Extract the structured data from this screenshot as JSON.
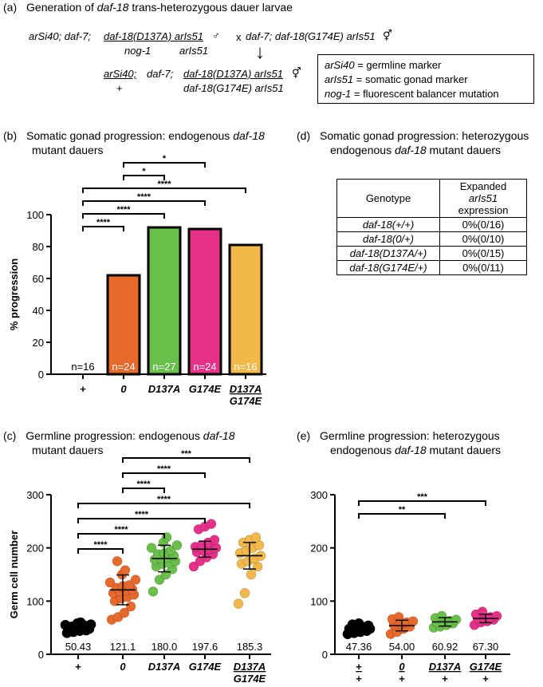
{
  "panel_a": {
    "label": "(a)",
    "title_pre": "Generation of ",
    "title_gene": "daf-18",
    "title_post": " trans-heterozygous dauer larvae",
    "cross": {
      "p1_prefix": "arSi40; daf-7;",
      "p1_top": "daf-18(D137A) arIs51",
      "p1_male": "♂",
      "p1_bottom_left": "nog-1",
      "p1_bottom_right": "arIs51",
      "x": "x",
      "p2": "daf-7; daf-18(G174E) arIs51",
      "p2_herm": "⚥",
      "arrow": "↓",
      "off_top_left": "arSi40;",
      "off_bottom_left": "+",
      "off_mid": "daf-7;",
      "off_top": "daf-18(D137A) arIs51",
      "off_herm": "⚥",
      "off_bottom": "daf-18(G174E) arIs51"
    },
    "key": [
      {
        "name": "arSi40",
        "desc": " = germline marker"
      },
      {
        "name": "arIs51",
        "desc": " = somatic gonad marker"
      },
      {
        "name": "nog-1",
        "desc": " = fluorescent balancer mutation"
      }
    ]
  },
  "panel_b": {
    "label": "(b)",
    "title_line1": "Somatic gonad progression: endogenous ",
    "title_gene": "daf-18",
    "title_line2": "mutant dauers",
    "chart_data": {
      "type": "bar",
      "categories": [
        "+",
        "0",
        "D137A",
        "G174E",
        "D137A/G174E"
      ],
      "values": [
        0,
        62,
        92,
        91,
        81
      ],
      "n_labels": [
        "n=16",
        "n=24",
        "n=27",
        "n=24",
        "n=16"
      ],
      "colors": [
        "#ffffff",
        "#e8692c",
        "#6abf4b",
        "#e6318a",
        "#f2b84a"
      ],
      "ylabel": "% progression",
      "ylim": [
        0,
        100
      ],
      "yticks": [
        0,
        20,
        40,
        60,
        80,
        100
      ],
      "significance": [
        {
          "from": 1,
          "to": 3,
          "label": "*"
        },
        {
          "from": 1,
          "to": 2,
          "label": "*"
        },
        {
          "from": 0,
          "to": 4,
          "label": "****"
        },
        {
          "from": 0,
          "to": 3,
          "label": "****"
        },
        {
          "from": 0,
          "to": 2,
          "label": "****"
        },
        {
          "from": 0,
          "to": 1,
          "label": "****"
        }
      ]
    }
  },
  "panel_d": {
    "label": "(d)",
    "title_line1": "Somatic gonad progression: heterozygous",
    "title_line2_pre": "endogenous ",
    "title_gene": "daf-18",
    "title_line2_post": " mutant dauers",
    "header_genotype": "Genotype",
    "header_expr_1": "Expanded",
    "header_expr_2": "arIs51",
    "header_expr_3": "expression",
    "rows": [
      {
        "genotype": "daf-18(+/+)",
        "value": "0%(0/16)"
      },
      {
        "genotype": "daf-18(0/+)",
        "value": "0%(0/10)"
      },
      {
        "genotype": "daf-18(D137A/+)",
        "value": "0%(0/15)"
      },
      {
        "genotype": "daf-18(G174E/+)",
        "value": "0%(0/11)"
      }
    ]
  },
  "panel_c": {
    "label": "(c)",
    "title_line1": "Germline progression: endogenous ",
    "title_gene": "daf-18",
    "title_line2": "mutant dauers",
    "chart_data": {
      "type": "scatter",
      "categories": [
        "+",
        "0",
        "D137A",
        "G174E",
        "D137A/G174E"
      ],
      "means": [
        50.43,
        121.1,
        180.0,
        197.6,
        185.3
      ],
      "mean_labels": [
        "50.43",
        "121.1",
        "180.0",
        "197.6",
        "185.3"
      ],
      "sd": [
        6,
        28,
        25,
        15,
        25
      ],
      "colors": [
        "#000000",
        "#e8692c",
        "#6abf4b",
        "#e6318a",
        "#f2b84a"
      ],
      "points": [
        [
          40,
          42,
          44,
          45,
          46,
          47,
          48,
          48,
          49,
          50,
          50,
          51,
          52,
          53,
          54,
          55,
          56,
          58,
          60
        ],
        [
          65,
          70,
          78,
          90,
          100,
          105,
          108,
          112,
          115,
          118,
          120,
          122,
          125,
          128,
          130,
          135,
          140,
          150,
          158,
          175
        ],
        [
          118,
          140,
          150,
          160,
          165,
          170,
          172,
          175,
          178,
          180,
          182,
          185,
          188,
          190,
          195,
          200,
          205,
          210,
          220
        ],
        [
          165,
          175,
          182,
          188,
          192,
          195,
          198,
          200,
          202,
          205,
          210,
          215,
          235,
          240,
          245
        ],
        [
          95,
          115,
          150,
          165,
          170,
          175,
          180,
          185,
          190,
          195,
          200,
          205,
          210,
          215,
          220
        ]
      ],
      "ylabel": "Germ cell number",
      "ylim": [
        0,
        300
      ],
      "yticks": [
        0,
        100,
        200,
        300
      ],
      "significance": [
        {
          "from": 1,
          "to": 4,
          "label": "***"
        },
        {
          "from": 1,
          "to": 3,
          "label": "****"
        },
        {
          "from": 1,
          "to": 2,
          "label": "****"
        },
        {
          "from": 0,
          "to": 4,
          "label": "****"
        },
        {
          "from": 0,
          "to": 3,
          "label": "****"
        },
        {
          "from": 0,
          "to": 2,
          "label": "****"
        },
        {
          "from": 0,
          "to": 1,
          "label": "****"
        }
      ]
    }
  },
  "panel_e": {
    "label": "(e)",
    "title_line1": "Germline progression: heterozygous",
    "title_line2_pre": "endogenous ",
    "title_gene": "daf-18",
    "title_line2_post": " mutant dauers",
    "chart_data": {
      "type": "scatter",
      "categories": [
        "+/+",
        "0/+",
        "D137A/+",
        "G174E/+"
      ],
      "cat_top": [
        "+",
        "0",
        "D137A",
        "G174E"
      ],
      "cat_bottom": [
        "+",
        "+",
        "+",
        "+"
      ],
      "means": [
        47.36,
        54.0,
        60.92,
        67.3
      ],
      "mean_labels": [
        "47.36",
        "54.00",
        "60.92",
        "67.30"
      ],
      "sd": [
        6,
        10,
        8,
        8
      ],
      "colors": [
        "#000000",
        "#e8692c",
        "#6abf4b",
        "#e6318a"
      ],
      "points": [
        [
          38,
          40,
          42,
          44,
          45,
          46,
          47,
          48,
          48,
          50,
          52,
          54,
          56,
          58
        ],
        [
          38,
          42,
          48,
          52,
          55,
          58,
          60,
          62,
          66,
          70
        ],
        [
          50,
          52,
          55,
          58,
          60,
          62,
          63,
          65,
          68,
          72
        ],
        [
          55,
          60,
          62,
          65,
          67,
          68,
          70,
          72,
          75,
          80
        ]
      ],
      "ylabel": "",
      "ylim": [
        0,
        300
      ],
      "yticks": [
        0,
        100,
        200,
        300
      ],
      "significance": [
        {
          "from": 0,
          "to": 3,
          "label": "***"
        },
        {
          "from": 0,
          "to": 2,
          "label": "**"
        }
      ]
    }
  }
}
